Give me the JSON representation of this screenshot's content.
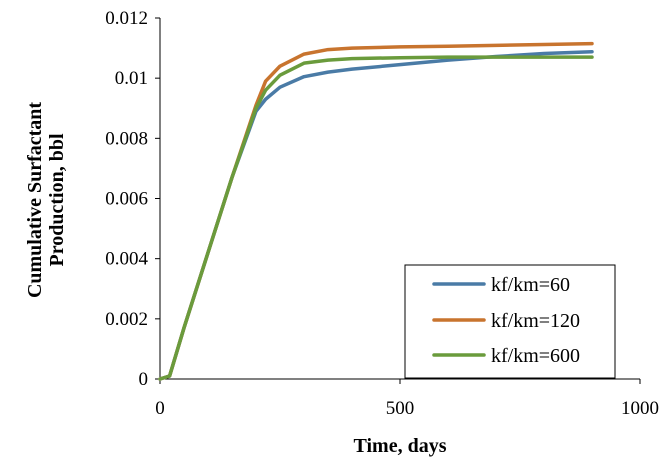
{
  "chart_data": {
    "type": "line",
    "title": "",
    "xlabel": "Time, days",
    "ylabel_lines": [
      "Cumulative Surfactant",
      "Production, bbl"
    ],
    "xlim": [
      0,
      1000
    ],
    "ylim": [
      0,
      0.012
    ],
    "x_ticks": [
      0,
      500,
      1000
    ],
    "x_tick_labels": [
      "0",
      "500",
      "1000"
    ],
    "y_ticks": [
      0,
      0.002,
      0.004,
      0.006,
      0.008,
      0.01,
      0.012
    ],
    "y_tick_labels": [
      "0",
      "0.002",
      "0.004",
      "0.006",
      "0.008",
      "0.01",
      "0.012"
    ],
    "grid": false,
    "legend_position": "bottom-right",
    "series": [
      {
        "name": "kf/km=60",
        "color": "#4a7ba6",
        "x": [
          0,
          20,
          50,
          100,
          150,
          200,
          220,
          250,
          300,
          350,
          400,
          500,
          600,
          700,
          800,
          900
        ],
        "y": [
          0,
          0.0001,
          0.0017,
          0.0042,
          0.0067,
          0.0089,
          0.0093,
          0.0097,
          0.01005,
          0.0102,
          0.0103,
          0.01045,
          0.0106,
          0.01072,
          0.01082,
          0.01088
        ]
      },
      {
        "name": "kf/km=120",
        "color": "#c8742e",
        "x": [
          0,
          20,
          50,
          100,
          150,
          200,
          220,
          250,
          300,
          350,
          400,
          500,
          600,
          700,
          800,
          900
        ],
        "y": [
          0,
          0.0001,
          0.0017,
          0.0042,
          0.0067,
          0.0091,
          0.0099,
          0.0104,
          0.0108,
          0.01095,
          0.011,
          0.01104,
          0.01106,
          0.01109,
          0.01112,
          0.01115
        ]
      },
      {
        "name": "kf/km=600",
        "color": "#6a9b3c",
        "x": [
          0,
          20,
          50,
          100,
          150,
          200,
          220,
          250,
          300,
          350,
          400,
          500,
          600,
          700,
          800,
          900
        ],
        "y": [
          0,
          0.0001,
          0.0017,
          0.0042,
          0.0067,
          0.009,
          0.0096,
          0.0101,
          0.0105,
          0.0106,
          0.01065,
          0.01068,
          0.0107,
          0.0107,
          0.0107,
          0.0107
        ]
      }
    ]
  }
}
